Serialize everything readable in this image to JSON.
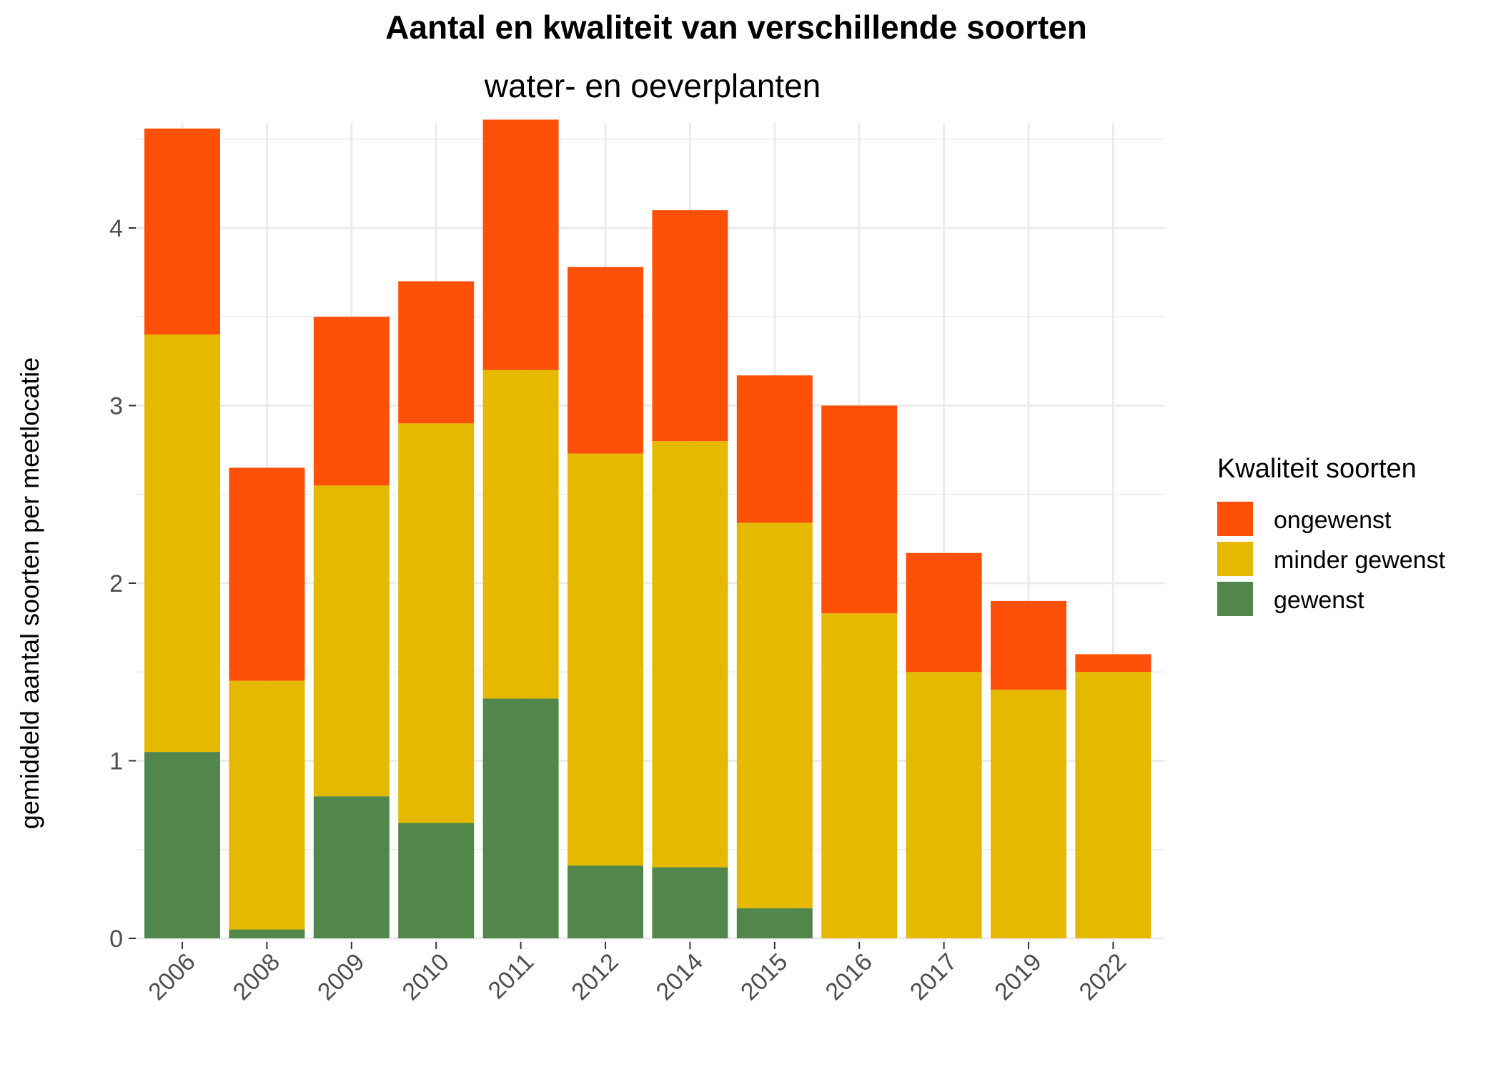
{
  "chart_data": {
    "type": "bar",
    "stacked": true,
    "title": "Aantal en kwaliteit van verschillende soorten",
    "subtitle": "water- en oeverplanten",
    "xlabel": "",
    "ylabel": "gemiddeld aantal soorten per meetlocatie",
    "categories": [
      "2006",
      "2008",
      "2009",
      "2010",
      "2011",
      "2012",
      "2014",
      "2015",
      "2016",
      "2017",
      "2019",
      "2022"
    ],
    "series": [
      {
        "name": "gewenst",
        "color": "#52874c",
        "values": [
          1.05,
          0.05,
          0.8,
          0.65,
          1.35,
          0.41,
          0.4,
          0.17,
          0.0,
          0.0,
          0.0,
          0.0
        ]
      },
      {
        "name": "minder gewenst",
        "color": "#e5b900",
        "values": [
          2.35,
          1.4,
          1.75,
          2.25,
          1.85,
          2.32,
          2.4,
          2.17,
          1.83,
          1.5,
          1.4,
          1.5
        ]
      },
      {
        "name": "ongewenst",
        "color": "#ff5009",
        "values": [
          1.16,
          1.2,
          0.95,
          0.8,
          1.41,
          1.05,
          1.3,
          0.83,
          1.17,
          0.67,
          0.5,
          0.1
        ]
      }
    ],
    "ylim": [
      0,
      4.6
    ],
    "yticks": [
      0,
      1,
      2,
      3,
      4
    ],
    "grid": true,
    "legend": {
      "title": "Kwaliteit soorten",
      "placement": "right",
      "order": [
        "ongewenst",
        "minder gewenst",
        "gewenst"
      ]
    },
    "colors": {
      "grid": "#ebebeb",
      "tick_text": "#4d4d4d"
    }
  }
}
